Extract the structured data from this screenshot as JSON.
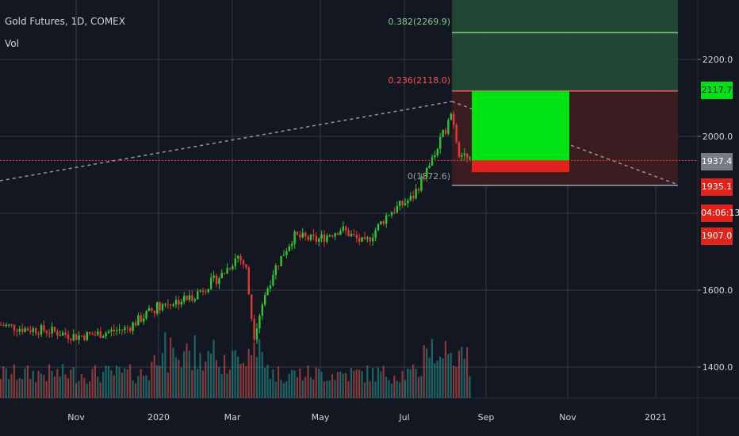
{
  "header": {
    "title": "Gold Futures, 1D, COMEX",
    "vol_label": "Vol"
  },
  "colors": {
    "background": "#131722",
    "grid": "#363a45",
    "up": "#26a69a",
    "down": "#ef5350",
    "candle_up": "#2fc92f",
    "candle_down": "#e53935",
    "fib_upper_zone": "#234b35",
    "fib_lower_zone": "#3d1e22",
    "position_profit": "#00e313",
    "position_loss": "#e0231d",
    "dashed_line": "#9598a1",
    "red_line": "#ff3b30",
    "axis_text": "#d1d4dc"
  },
  "tags": {
    "price_1": "2117.7",
    "price_2": "1937.4",
    "price_3": "1935.1",
    "countdown": "04:06:13",
    "price_4": "1907.0"
  },
  "fib_labels": {
    "level_0382": "0.382(2269.9)",
    "level_0236": "0.236(2118.0)",
    "level_0": "0(1872.6)"
  },
  "chart_data": {
    "type": "candlestick",
    "title": "Gold Futures, 1D, COMEX",
    "x_ticks": [
      "Nov",
      "2020",
      "Mar",
      "May",
      "Jul",
      "Sep",
      "Nov",
      "2021"
    ],
    "y_ticks": [
      "1400.0",
      "1600.0",
      "2000.0",
      "2200.0"
    ],
    "ylim": [
      1320,
      2340
    ],
    "price_path": [
      {
        "date": "2019-09",
        "close": 1510
      },
      {
        "date": "2019-10",
        "close": 1500
      },
      {
        "date": "2019-11",
        "close": 1495
      },
      {
        "date": "2019-12",
        "close": 1480
      },
      {
        "date": "2020-01",
        "close": 1560
      },
      {
        "date": "2020-02",
        "close": 1600
      },
      {
        "date": "2020-02-24",
        "close": 1680
      },
      {
        "date": "2020-03-18",
        "close": 1480
      },
      {
        "date": "2020-04",
        "close": 1750
      },
      {
        "date": "2020-05",
        "close": 1730
      },
      {
        "date": "2020-06",
        "close": 1760
      },
      {
        "date": "2020-07",
        "close": 1830
      },
      {
        "date": "2020-07-28",
        "close": 1960
      },
      {
        "date": "2020-08-06",
        "close": 2070
      },
      {
        "date": "2020-08-11",
        "close": 1940
      },
      {
        "date": "2020-08-21",
        "close": 1935
      }
    ],
    "volume_note": "volume histogram at bottom, green/red bars",
    "fibonacci": [
      {
        "level": "0.382",
        "price": 2269.9
      },
      {
        "level": "0.236",
        "price": 2118.0
      },
      {
        "level": "0",
        "price": 1872.6
      }
    ],
    "horizontal_line": 1937.4,
    "position": {
      "entry": 1937.4,
      "target": 2117.7,
      "stop": 1907.0
    }
  }
}
